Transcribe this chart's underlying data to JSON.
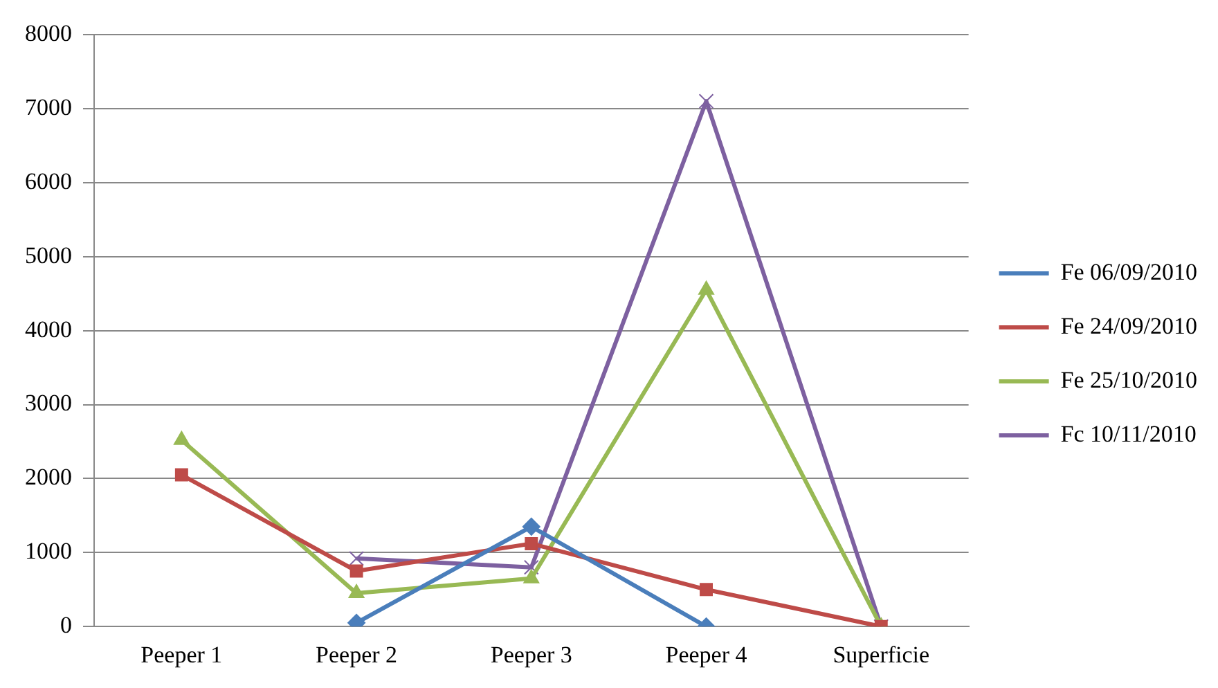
{
  "chart_data": {
    "type": "line",
    "categories": [
      "Peeper 1",
      "Peeper 2",
      "Peeper 3",
      "Peeper 4",
      "Superficie"
    ],
    "series": [
      {
        "name": "Fe 06/09/2010",
        "color": "#4a7ebb",
        "marker": "diamond",
        "values": [
          null,
          50,
          1350,
          0,
          null
        ]
      },
      {
        "name": "Fe 24/09/2010",
        "color": "#be4b48",
        "marker": "square",
        "values": [
          2050,
          750,
          1120,
          500,
          0
        ]
      },
      {
        "name": "Fe 25/10/2010",
        "color": "#98b954",
        "marker": "triangle",
        "values": [
          2520,
          450,
          650,
          4550,
          0
        ]
      },
      {
        "name": "Fc 10/11/2010",
        "color": "#7d60a0",
        "marker": "cross",
        "values": [
          null,
          920,
          800,
          7100,
          0
        ]
      }
    ],
    "ylim": [
      0,
      8000
    ],
    "yticks": [
      0,
      1000,
      2000,
      3000,
      4000,
      5000,
      6000,
      7000,
      8000
    ],
    "grid": "y",
    "legend": "right"
  }
}
